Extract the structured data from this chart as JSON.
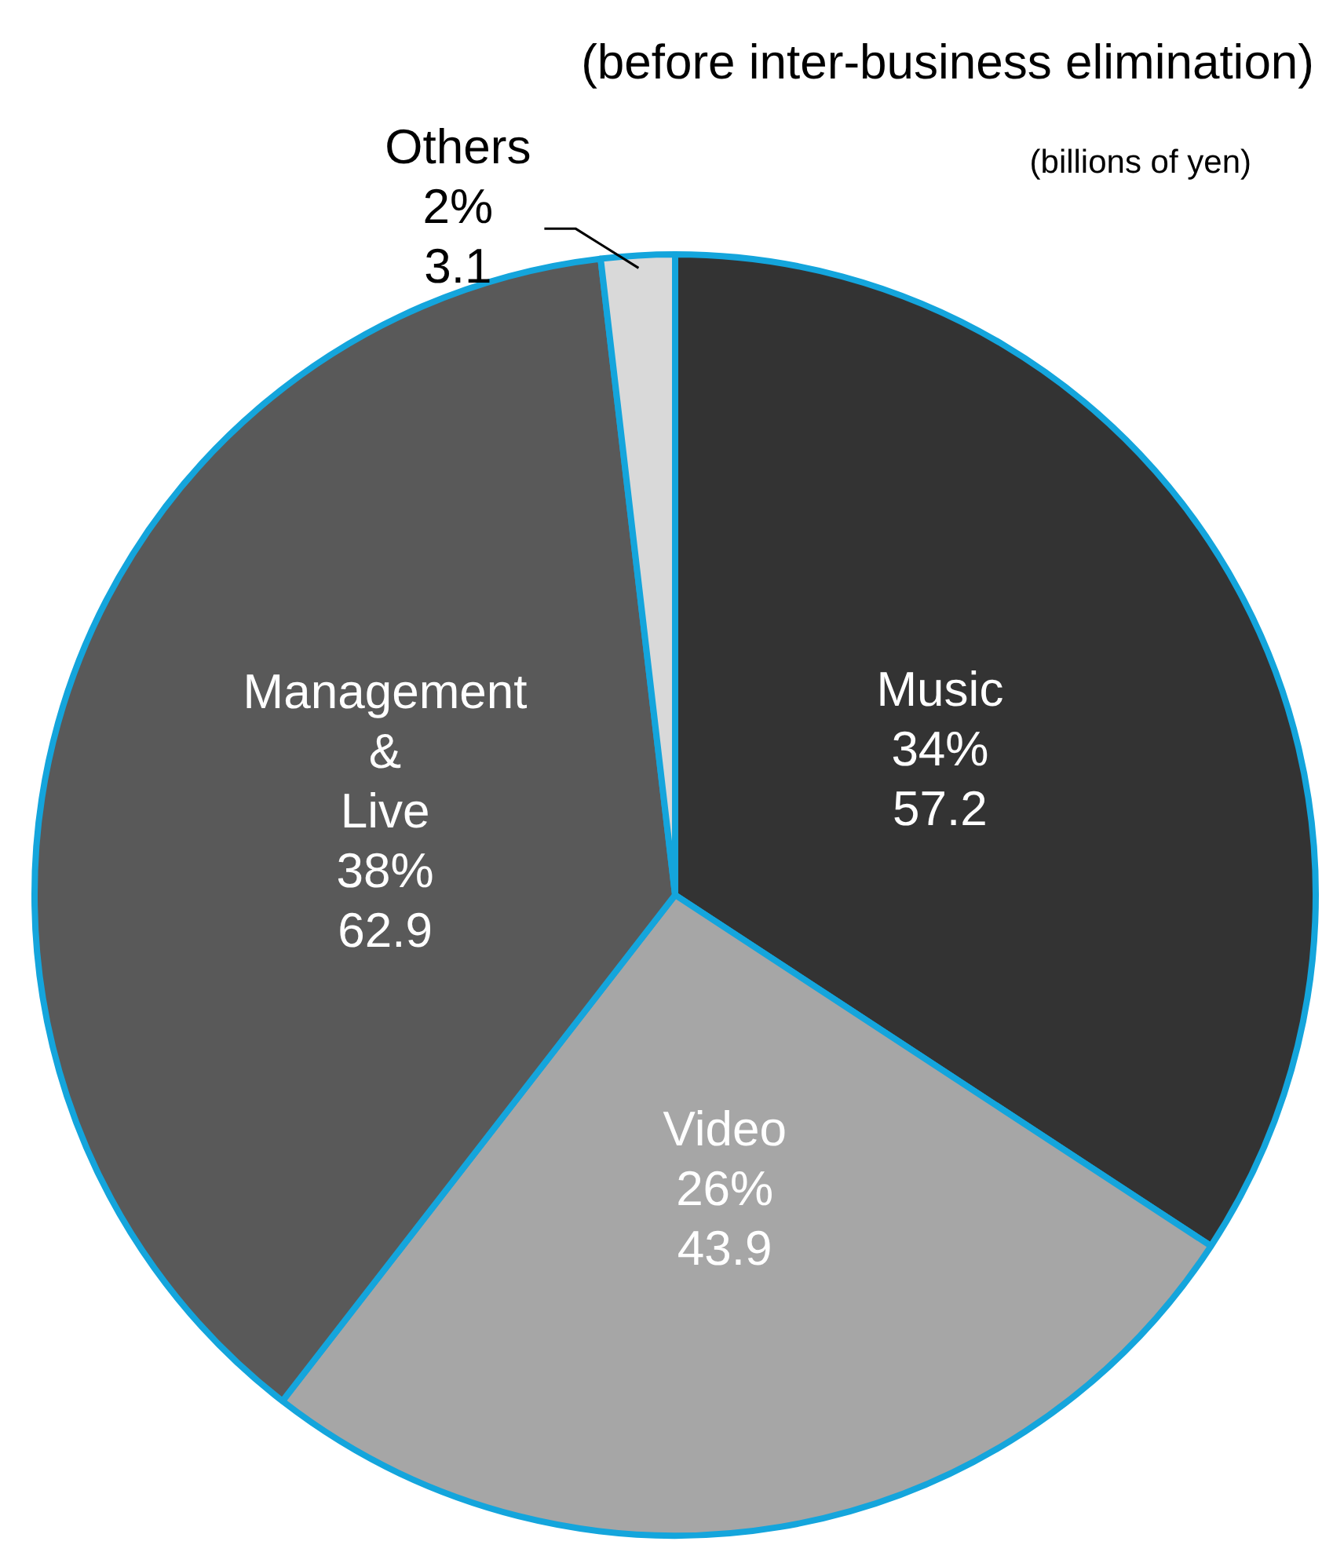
{
  "chart_data": {
    "type": "pie",
    "title": "(before inter-business elimination)",
    "annotations": [
      "(billions of yen)"
    ],
    "categories": [
      "Music",
      "Video",
      "Management & Live",
      "Others"
    ],
    "values": [
      57.2,
      43.9,
      62.9,
      3.1
    ],
    "colors": [
      "#333333",
      "#a6a6a6",
      "#595959",
      "#d9d9d9"
    ],
    "value_labels": [
      "34%\n57.2",
      "26%\n43.9",
      "38%\n62.9",
      "2%\n3.1"
    ],
    "legend": false
  }
}
